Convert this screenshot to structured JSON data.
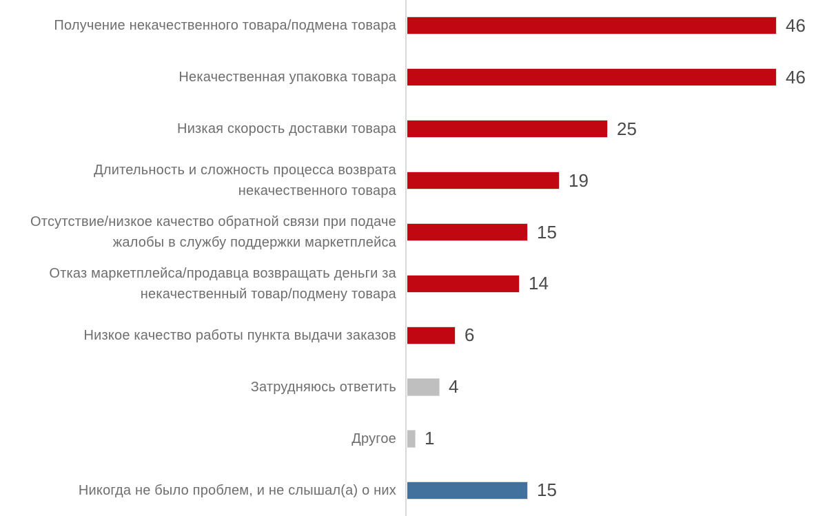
{
  "chart_data": {
    "type": "bar",
    "orientation": "horizontal",
    "title": "",
    "xlabel": "",
    "ylabel": "",
    "xlim": [
      0,
      51
    ],
    "grid": false,
    "legend": null,
    "categories": [
      "Получение некачественного товара/подмена товара",
      "Некачественная упаковка товара",
      "Низкая скорость доставки товара",
      "Длительность и сложность процесса возврата некачественного товара",
      "Отсутствие/низкое качество обратной связи при подаче жалобы в службу поддержки маркетплейса",
      "Отказ маркетплейса/продавца возвращать деньги за некачественный товар/подмену товара",
      "Низкое качество работы пункта выдачи заказов",
      "Затрудняюсь ответить",
      "Другое",
      "Никогда не было проблем, и не слышал(а) о них"
    ],
    "values": [
      46,
      46,
      25,
      19,
      15,
      14,
      6,
      4,
      1,
      15
    ],
    "bar_color_keys": [
      "primary",
      "primary",
      "primary",
      "primary",
      "primary",
      "primary",
      "primary",
      "neutral",
      "neutral",
      "highlight"
    ],
    "colors": {
      "primary": "#c00712",
      "neutral": "#bfbfbf",
      "highlight": "#41719c",
      "axis_line": "#d9d9d9",
      "label_text": "#6e6e6e",
      "value_text": "#4a4a4a"
    }
  }
}
